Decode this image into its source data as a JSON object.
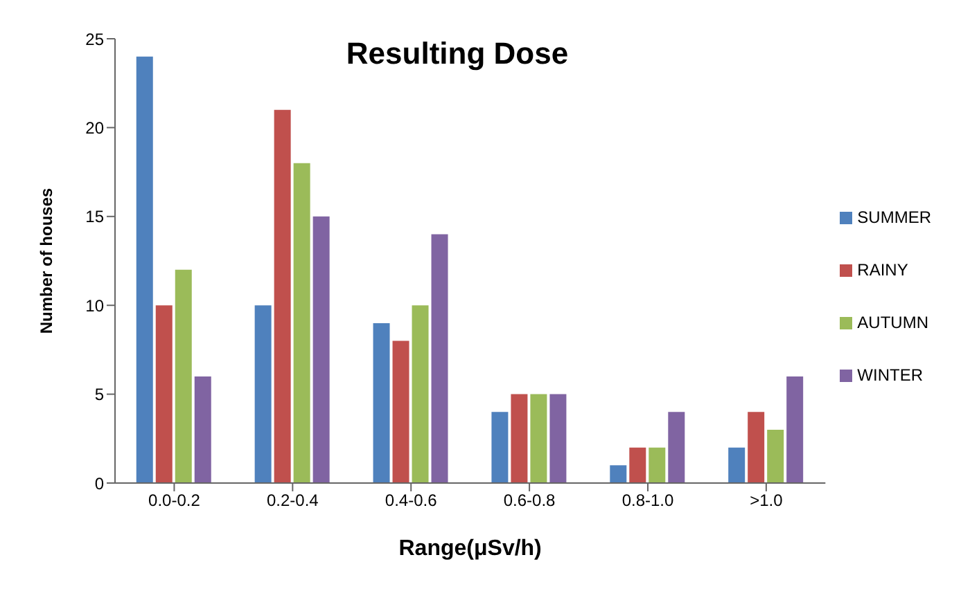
{
  "chart_data": {
    "type": "bar",
    "title": "Resulting Dose",
    "xlabel": "Range(μSv/h)",
    "ylabel": "Number of houses",
    "categories": [
      "0.0-0.2",
      "0.2-0.4",
      "0.4-0.6",
      "0.6-0.8",
      "0.8-1.0",
      ">1.0"
    ],
    "series": [
      {
        "name": "SUMMER",
        "color": "#4f81bd",
        "values": [
          24,
          10,
          9,
          4,
          1,
          2
        ]
      },
      {
        "name": "RAINY",
        "color": "#c0504d",
        "values": [
          10,
          21,
          8,
          5,
          2,
          4
        ]
      },
      {
        "name": "AUTUMN",
        "color": "#9bbb59",
        "values": [
          12,
          18,
          10,
          5,
          2,
          3
        ]
      },
      {
        "name": "WINTER",
        "color": "#8064a2",
        "values": [
          6,
          15,
          14,
          5,
          4,
          6
        ]
      }
    ],
    "ylim": [
      0,
      25
    ],
    "yticks": [
      0,
      5,
      10,
      15,
      20,
      25
    ],
    "grid": false,
    "legend": "right"
  }
}
